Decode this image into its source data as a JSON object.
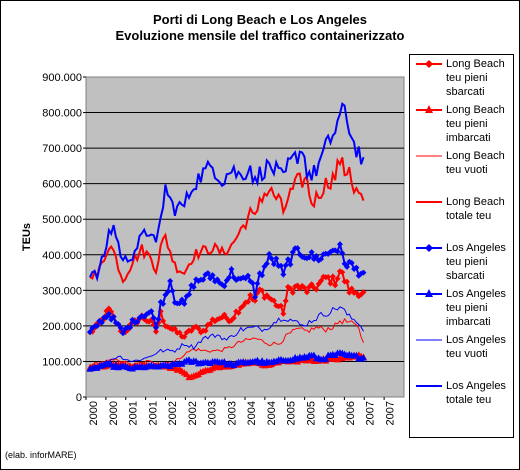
{
  "title_line1": "Porti di Long Beach e Los Angeles",
  "title_line2": "Evoluzione mensile del traffico containerizzato",
  "credit": "(elab. inforMARE)",
  "chart_data": {
    "type": "line",
    "ylabel": "TEUs",
    "xlabel": "",
    "ylim": [
      0,
      900000
    ],
    "y_ticks": [
      "0",
      "100.000",
      "200.000",
      "300.000",
      "400.000",
      "500.000",
      "600.000",
      "700.000",
      "800.000",
      "900.000"
    ],
    "x_tick_labels": [
      "2000",
      "2000",
      "2001",
      "2001",
      "2002",
      "2002",
      "2003",
      "2003",
      "2004",
      "2004",
      "2005",
      "2005",
      "2006",
      "2006",
      "2007",
      "2007"
    ],
    "x_range_months": "2000-01 to 2007-04",
    "grid": "horizontal",
    "plot_background": "#c0c0c0",
    "legend_position": "right",
    "series": [
      {
        "name": "Long Beach teu pieni sbarcati",
        "color": "#ff0000",
        "width": 2,
        "marker": "diamond",
        "anchors": [
          [
            0,
            180
          ],
          [
            4,
            205
          ],
          [
            8,
            245
          ],
          [
            12,
            200
          ],
          [
            14,
            180
          ],
          [
            18,
            205
          ],
          [
            22,
            225
          ],
          [
            26,
            210
          ],
          [
            28,
            185
          ],
          [
            30,
            235
          ],
          [
            32,
            205
          ],
          [
            36,
            185
          ],
          [
            40,
            170
          ],
          [
            44,
            195
          ],
          [
            48,
            185
          ],
          [
            52,
            215
          ],
          [
            56,
            225
          ],
          [
            60,
            220
          ],
          [
            64,
            255
          ],
          [
            68,
            280
          ],
          [
            70,
            270
          ],
          [
            72,
            300
          ],
          [
            76,
            280
          ],
          [
            80,
            255
          ],
          [
            82,
            240
          ],
          [
            84,
            300
          ],
          [
            88,
            310
          ],
          [
            92,
            300
          ],
          [
            96,
            310
          ],
          [
            100,
            335
          ],
          [
            104,
            325
          ],
          [
            106,
            355
          ],
          [
            108,
            330
          ],
          [
            110,
            300
          ],
          [
            112,
            295
          ],
          [
            114,
            295
          ],
          [
            116,
            290
          ]
        ]
      },
      {
        "name": "Long Beach teu pieni imbarcati",
        "color": "#ff0000",
        "width": 2,
        "marker": "triangle",
        "anchors": [
          [
            0,
            80
          ],
          [
            6,
            88
          ],
          [
            12,
            90
          ],
          [
            18,
            85
          ],
          [
            24,
            90
          ],
          [
            30,
            85
          ],
          [
            36,
            80
          ],
          [
            40,
            70
          ],
          [
            42,
            55
          ],
          [
            46,
            65
          ],
          [
            50,
            75
          ],
          [
            54,
            85
          ],
          [
            58,
            85
          ],
          [
            62,
            90
          ],
          [
            66,
            95
          ],
          [
            70,
            95
          ],
          [
            74,
            90
          ],
          [
            78,
            95
          ],
          [
            82,
            100
          ],
          [
            86,
            100
          ],
          [
            90,
            100
          ],
          [
            94,
            105
          ],
          [
            98,
            100
          ],
          [
            102,
            110
          ],
          [
            106,
            105
          ],
          [
            110,
            110
          ],
          [
            114,
            115
          ],
          [
            116,
            110
          ]
        ]
      },
      {
        "name": "Long Beach teu vuoti",
        "color": "#ff0000",
        "width": 1,
        "marker": "none",
        "anchors": [
          [
            0,
            90
          ],
          [
            6,
            100
          ],
          [
            12,
            105
          ],
          [
            18,
            90
          ],
          [
            24,
            100
          ],
          [
            30,
            95
          ],
          [
            36,
            100
          ],
          [
            40,
            120
          ],
          [
            44,
            135
          ],
          [
            48,
            130
          ],
          [
            54,
            130
          ],
          [
            58,
            135
          ],
          [
            64,
            155
          ],
          [
            70,
            165
          ],
          [
            76,
            150
          ],
          [
            80,
            150
          ],
          [
            84,
            175
          ],
          [
            88,
            190
          ],
          [
            92,
            185
          ],
          [
            96,
            195
          ],
          [
            100,
            190
          ],
          [
            104,
            200
          ],
          [
            106,
            215
          ],
          [
            110,
            210
          ],
          [
            114,
            195
          ],
          [
            116,
            150
          ]
        ]
      },
      {
        "name": "Long Beach totale teu",
        "color": "#ff0000",
        "width": 2,
        "marker": "none",
        "anchors": [
          [
            0,
            350
          ],
          [
            3,
            340
          ],
          [
            6,
            390
          ],
          [
            8,
            430
          ],
          [
            10,
            410
          ],
          [
            12,
            370
          ],
          [
            14,
            330
          ],
          [
            18,
            380
          ],
          [
            22,
            415
          ],
          [
            26,
            390
          ],
          [
            28,
            360
          ],
          [
            30,
            420
          ],
          [
            32,
            450
          ],
          [
            34,
            410
          ],
          [
            36,
            370
          ],
          [
            40,
            350
          ],
          [
            44,
            400
          ],
          [
            48,
            410
          ],
          [
            52,
            420
          ],
          [
            56,
            405
          ],
          [
            60,
            425
          ],
          [
            64,
            470
          ],
          [
            68,
            515
          ],
          [
            70,
            500
          ],
          [
            72,
            560
          ],
          [
            76,
            580
          ],
          [
            80,
            555
          ],
          [
            82,
            520
          ],
          [
            84,
            560
          ],
          [
            88,
            605
          ],
          [
            92,
            610
          ],
          [
            94,
            545
          ],
          [
            96,
            560
          ],
          [
            100,
            600
          ],
          [
            104,
            620
          ],
          [
            106,
            670
          ],
          [
            108,
            630
          ],
          [
            110,
            650
          ],
          [
            112,
            580
          ],
          [
            114,
            575
          ],
          [
            116,
            545
          ]
        ]
      },
      {
        "name": "Los Angeles teu pieni sbarcati",
        "color": "#0000ff",
        "width": 2,
        "marker": "diamond",
        "anchors": [
          [
            0,
            180
          ],
          [
            4,
            210
          ],
          [
            8,
            235
          ],
          [
            12,
            200
          ],
          [
            14,
            180
          ],
          [
            18,
            210
          ],
          [
            22,
            230
          ],
          [
            26,
            240
          ],
          [
            28,
            195
          ],
          [
            30,
            260
          ],
          [
            32,
            285
          ],
          [
            34,
            330
          ],
          [
            36,
            275
          ],
          [
            40,
            260
          ],
          [
            44,
            320
          ],
          [
            48,
            335
          ],
          [
            52,
            340
          ],
          [
            56,
            315
          ],
          [
            60,
            350
          ],
          [
            64,
            325
          ],
          [
            68,
            335
          ],
          [
            70,
            290
          ],
          [
            72,
            340
          ],
          [
            76,
            390
          ],
          [
            80,
            375
          ],
          [
            82,
            340
          ],
          [
            84,
            380
          ],
          [
            88,
            410
          ],
          [
            92,
            400
          ],
          [
            96,
            390
          ],
          [
            100,
            400
          ],
          [
            104,
            420
          ],
          [
            106,
            415
          ],
          [
            108,
            380
          ],
          [
            110,
            375
          ],
          [
            112,
            360
          ],
          [
            114,
            355
          ],
          [
            116,
            350
          ]
        ]
      },
      {
        "name": "Los Angeles teu pieni imbarcati",
        "color": "#0000ff",
        "width": 2,
        "marker": "triangle",
        "anchors": [
          [
            0,
            75
          ],
          [
            6,
            90
          ],
          [
            12,
            85
          ],
          [
            18,
            80
          ],
          [
            24,
            85
          ],
          [
            30,
            85
          ],
          [
            36,
            90
          ],
          [
            42,
            100
          ],
          [
            48,
            95
          ],
          [
            54,
            100
          ],
          [
            60,
            90
          ],
          [
            64,
            95
          ],
          [
            70,
            100
          ],
          [
            76,
            95
          ],
          [
            80,
            100
          ],
          [
            84,
            105
          ],
          [
            90,
            110
          ],
          [
            94,
            115
          ],
          [
            98,
            105
          ],
          [
            102,
            115
          ],
          [
            106,
            120
          ],
          [
            110,
            115
          ],
          [
            116,
            110
          ]
        ]
      },
      {
        "name": "Los Angeles teu vuoti",
        "color": "#0000ff",
        "width": 1,
        "marker": "none",
        "anchors": [
          [
            0,
            85
          ],
          [
            6,
            95
          ],
          [
            12,
            115
          ],
          [
            18,
            100
          ],
          [
            24,
            110
          ],
          [
            30,
            130
          ],
          [
            36,
            130
          ],
          [
            40,
            150
          ],
          [
            44,
            140
          ],
          [
            48,
            165
          ],
          [
            54,
            175
          ],
          [
            58,
            160
          ],
          [
            64,
            190
          ],
          [
            70,
            195
          ],
          [
            74,
            190
          ],
          [
            78,
            210
          ],
          [
            82,
            225
          ],
          [
            86,
            215
          ],
          [
            90,
            200
          ],
          [
            94,
            215
          ],
          [
            98,
            230
          ],
          [
            102,
            240
          ],
          [
            106,
            255
          ],
          [
            110,
            225
          ],
          [
            114,
            210
          ],
          [
            116,
            185
          ]
        ]
      },
      {
        "name": "Los Angeles totale teu",
        "color": "#0000ff",
        "width": 2,
        "marker": "none",
        "anchors": [
          [
            0,
            350
          ],
          [
            3,
            340
          ],
          [
            6,
            400
          ],
          [
            8,
            460
          ],
          [
            10,
            480
          ],
          [
            12,
            430
          ],
          [
            14,
            380
          ],
          [
            18,
            400
          ],
          [
            22,
            450
          ],
          [
            26,
            470
          ],
          [
            28,
            420
          ],
          [
            30,
            500
          ],
          [
            32,
            590
          ],
          [
            34,
            550
          ],
          [
            36,
            530
          ],
          [
            40,
            540
          ],
          [
            44,
            600
          ],
          [
            48,
            630
          ],
          [
            52,
            650
          ],
          [
            56,
            610
          ],
          [
            60,
            640
          ],
          [
            64,
            620
          ],
          [
            68,
            650
          ],
          [
            70,
            600
          ],
          [
            72,
            630
          ],
          [
            76,
            650
          ],
          [
            80,
            630
          ],
          [
            82,
            610
          ],
          [
            84,
            650
          ],
          [
            88,
            680
          ],
          [
            90,
            700
          ],
          [
            92,
            640
          ],
          [
            94,
            620
          ],
          [
            96,
            640
          ],
          [
            100,
            700
          ],
          [
            104,
            750
          ],
          [
            106,
            790
          ],
          [
            108,
            800
          ],
          [
            110,
            760
          ],
          [
            112,
            710
          ],
          [
            114,
            690
          ],
          [
            116,
            650
          ]
        ]
      }
    ]
  },
  "legend": [
    "Long Beach\nteu pieni\nsbarcati",
    "Long Beach\nteu pieni\nimbarcati",
    "Long Beach\nteu vuoti",
    "Long Beach\ntotale teu",
    "Los Angeles\nteu pieni\nsbarcati",
    "Los Angeles\nteu pieni\nimbarcati",
    "Los Angeles\nteu vuoti",
    "Los Angeles\ntotale teu"
  ]
}
